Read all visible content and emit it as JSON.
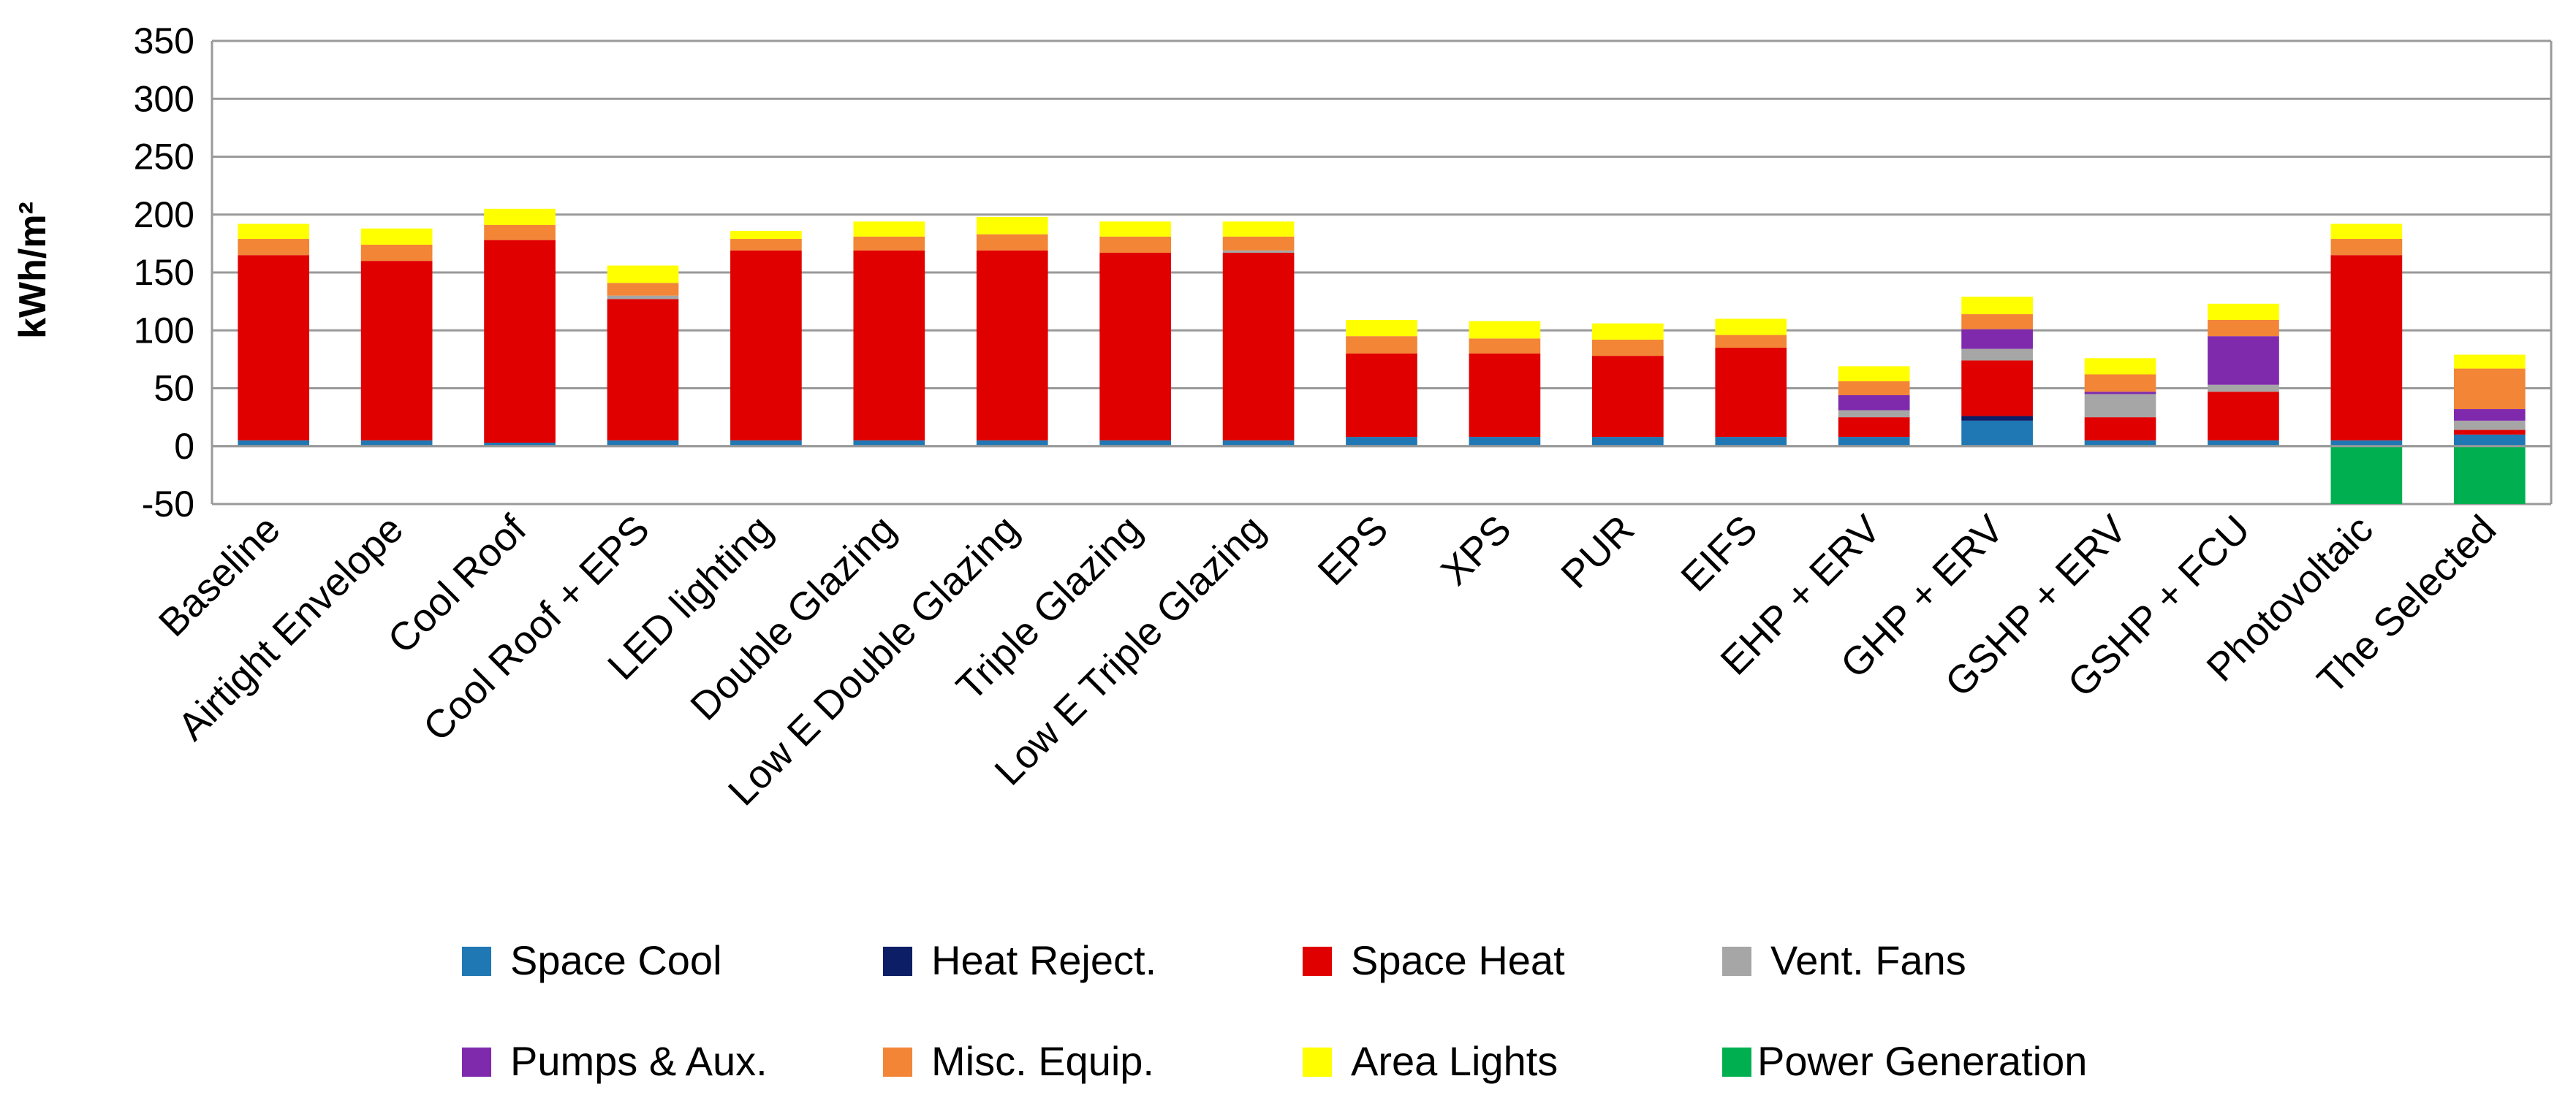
{
  "chart_data": {
    "type": "stacked-bar",
    "title": "",
    "xlabel": "",
    "ylabel": "kWh/m²",
    "ylim": [
      -50,
      350
    ],
    "yticks": [
      350,
      300,
      250,
      200,
      150,
      100,
      50,
      0,
      -50
    ],
    "grid": true,
    "legend_position": "bottom",
    "categories": [
      "Baseline",
      "Airtight Envelope",
      "Cool Roof",
      "Cool Roof + EPS",
      "LED lighting",
      "Double Glazing",
      "Low E Double Glazing",
      "Triple Glazing",
      "Low E Triple Glazing",
      "EPS",
      "XPS",
      "PUR",
      "EIFS",
      "EHP + ERV",
      "GHP + ERV",
      "GSHP + ERV",
      "GSHP + FCU",
      "Photovoltaic",
      "The Selected"
    ],
    "series": [
      {
        "name": "Space Cool",
        "color": "#1f77b4",
        "values": [
          5,
          5,
          3,
          5,
          5,
          5,
          5,
          5,
          5,
          8,
          8,
          8,
          8,
          8,
          22,
          5,
          5,
          5,
          10
        ]
      },
      {
        "name": "Heat Reject.",
        "color": "#0b1e66",
        "values": [
          0,
          0,
          0,
          0,
          0,
          0,
          0,
          0,
          0,
          0,
          0,
          0,
          0,
          0,
          4,
          0,
          0,
          0,
          0
        ]
      },
      {
        "name": "Space Heat",
        "color": "#e00000",
        "values": [
          160,
          155,
          175,
          122,
          164,
          164,
          164,
          162,
          162,
          72,
          72,
          70,
          77,
          17,
          48,
          20,
          42,
          160,
          4
        ]
      },
      {
        "name": "Vent. Fans",
        "color": "#a6a6a6",
        "values": [
          0,
          0,
          0,
          3,
          0,
          0,
          0,
          0,
          2,
          0,
          0,
          0,
          0,
          6,
          10,
          20,
          6,
          0,
          8
        ]
      },
      {
        "name": "Pumps & Aux.",
        "color": "#7f2aad",
        "values": [
          0,
          0,
          0,
          0,
          0,
          0,
          0,
          0,
          0,
          0,
          0,
          0,
          0,
          13,
          17,
          2,
          42,
          0,
          10
        ]
      },
      {
        "name": "Misc. Equip.",
        "color": "#f28536",
        "values": [
          14,
          14,
          13,
          11,
          10,
          12,
          14,
          14,
          12,
          15,
          13,
          14,
          11,
          12,
          13,
          15,
          14,
          14,
          35
        ]
      },
      {
        "name": "Area Lights",
        "color": "#ffff00",
        "values": [
          13,
          14,
          14,
          15,
          7,
          13,
          15,
          13,
          13,
          14,
          15,
          14,
          14,
          13,
          15,
          14,
          14,
          13,
          12
        ]
      },
      {
        "name": "Power Generation",
        "color": "#00b050",
        "values": [
          0,
          0,
          0,
          0,
          0,
          0,
          0,
          0,
          0,
          0,
          0,
          0,
          0,
          0,
          0,
          0,
          0,
          -50,
          -50
        ]
      }
    ]
  }
}
